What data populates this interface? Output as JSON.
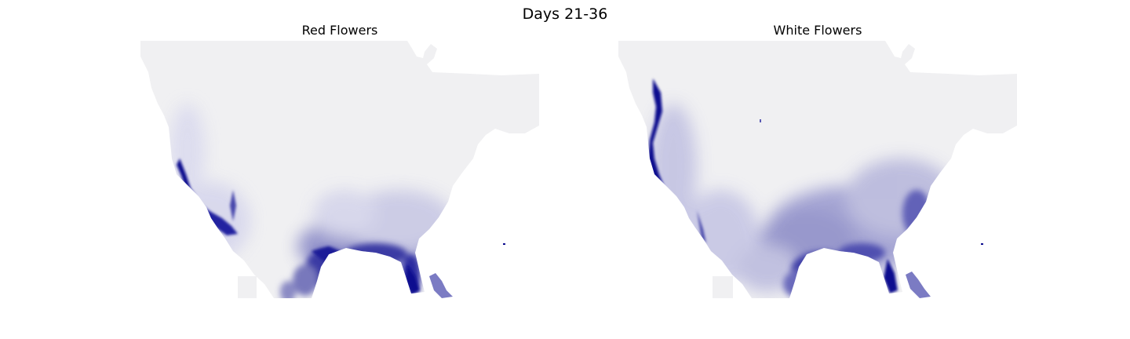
{
  "figure": {
    "title": "Days 21-36"
  },
  "colors": {
    "background": "#ffffff",
    "land_low": "#f0f0f2",
    "density_high": "#0d0d8f",
    "density_mid": "#5a5ab4",
    "density_light": "#b4b4dc"
  },
  "maps": [
    {
      "title": "Red Flowers",
      "variable": "red flower density",
      "colormap": "white-to-dark-blue"
    },
    {
      "title": "White Flowers",
      "variable": "white flower density",
      "colormap": "white-to-dark-blue"
    }
  ]
}
